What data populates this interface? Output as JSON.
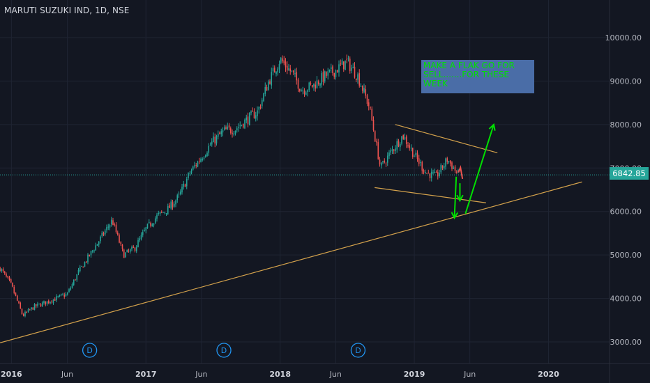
{
  "title": "MARUTI SUZUKI IND, 1D, NSE",
  "last_price": "6842.85",
  "note": [
    "MAKE A FLAK GO FOR",
    "SELL.......FOR THESE",
    "WEEK"
  ],
  "dividend_marker": "D",
  "colors": {
    "background": "#131722",
    "up": "#26a69a",
    "down": "#ef5350",
    "trendline": "#d4a24c",
    "arrow_green": "#00e000",
    "arrow_red": "#ef5350",
    "note_bg": "#4a6da7",
    "dividend": "#2196f3"
  },
  "chart_data": {
    "type": "line",
    "title": "MARUTI SUZUKI IND, 1D, NSE",
    "xlabel": "",
    "ylabel": "",
    "x_tick_labels": [
      "2016",
      "Jun",
      "2017",
      "Jun",
      "2018",
      "Jun",
      "2019",
      "Jun",
      "2020"
    ],
    "y_tick_labels": [
      "3000.00",
      "4000.00",
      "5000.00",
      "6000.00",
      "7000.00",
      "8000.00",
      "9000.00",
      "10000.00"
    ],
    "ylim": [
      2800,
      10400
    ],
    "grid": true,
    "last_price": 6842.85,
    "series": [
      {
        "style": "candlestick",
        "x": [
          "2015-12-01",
          "2016-01-01",
          "2016-02-01",
          "2016-03-01",
          "2016-04-01",
          "2016-05-01",
          "2016-06-01",
          "2016-07-01",
          "2016-08-01",
          "2016-09-01",
          "2016-10-01",
          "2016-11-01",
          "2016-12-01",
          "2017-01-01",
          "2017-02-01",
          "2017-03-01",
          "2017-04-01",
          "2017-05-01",
          "2017-06-01",
          "2017-07-01",
          "2017-08-01",
          "2017-09-01",
          "2017-10-01",
          "2017-11-01",
          "2017-12-01",
          "2018-01-01",
          "2018-02-01",
          "2018-03-01",
          "2018-04-01",
          "2018-05-01",
          "2018-06-01",
          "2018-07-01",
          "2018-08-01",
          "2018-09-01",
          "2018-10-01",
          "2018-11-01",
          "2018-12-01",
          "2019-01-01",
          "2019-02-01",
          "2019-03-01",
          "2019-04-01",
          "2019-05-01"
        ],
        "values": [
          4700,
          4300,
          3600,
          3800,
          3900,
          4000,
          4100,
          4600,
          5000,
          5400,
          5800,
          5000,
          5150,
          5600,
          5900,
          6050,
          6350,
          6900,
          7250,
          7600,
          7850,
          7900,
          8100,
          8300,
          9000,
          9500,
          9200,
          8800,
          8900,
          9100,
          9250,
          9450,
          9100,
          8400,
          7000,
          7400,
          7750,
          7300,
          6900,
          6800,
          7200,
          6842.85
        ]
      }
    ],
    "annotations": [
      {
        "type": "trendline",
        "x": [
          "2015-12-01",
          "2020-04-01"
        ],
        "y": [
          2980,
          6680
        ]
      },
      {
        "type": "trendline",
        "x": [
          "2018-11-10",
          "2019-08-15"
        ],
        "y": [
          8000,
          7350
        ]
      },
      {
        "type": "trendline",
        "x": [
          "2018-09-15",
          "2019-07-15"
        ],
        "y": [
          6550,
          6200
        ]
      },
      {
        "type": "arrow",
        "color": "green",
        "x": [
          "2019-05-20",
          "2019-08-05"
        ],
        "y": [
          5950,
          8000
        ]
      },
      {
        "type": "arrow",
        "color": "green",
        "x": [
          "2019-04-25",
          "2019-04-20"
        ],
        "y": [
          6800,
          5850
        ]
      },
      {
        "type": "arrow",
        "color": "green",
        "x": [
          "2019-05-05",
          "2019-05-05"
        ],
        "y": [
          6650,
          6250
        ]
      },
      {
        "type": "arrow",
        "color": "red",
        "x": [
          "2019-05-01",
          "2019-05-12"
        ],
        "y": [
          6900,
          6750
        ]
      },
      {
        "type": "text",
        "text": "MAKE A FLAK GO FOR SELL.......FOR THESE WEEK"
      }
    ],
    "dividend_dates": [
      "2016-08-01",
      "2017-08-01",
      "2018-08-01"
    ]
  }
}
